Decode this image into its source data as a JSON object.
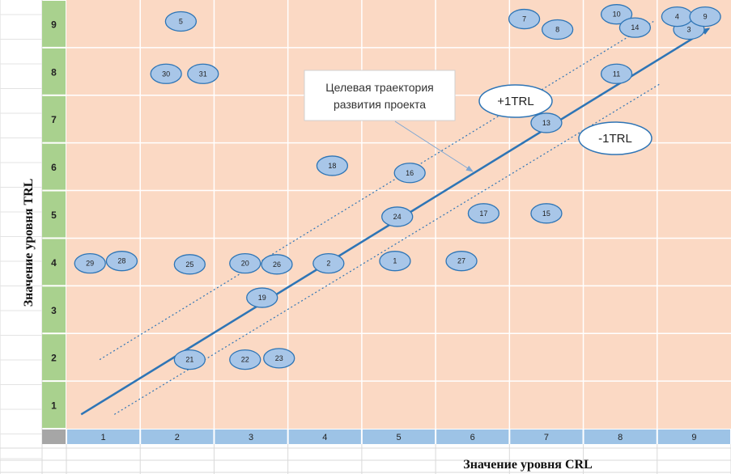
{
  "chart_data": {
    "type": "scatter",
    "xlabel": "Значение уровня CRL",
    "ylabel": "Значение уровня TRL",
    "xlim": [
      0.5,
      9.5
    ],
    "ylim": [
      0.5,
      9.5
    ],
    "x_ticks": [
      "1",
      "2",
      "3",
      "4",
      "5",
      "6",
      "7",
      "8",
      "9"
    ],
    "y_ticks": [
      "1",
      "2",
      "3",
      "4",
      "5",
      "6",
      "7",
      "8",
      "9"
    ],
    "grid": true,
    "colors": {
      "plot_background": "#fbd9c4",
      "grid": "#ffffff",
      "x_axis_band": "#9dc3e6",
      "y_axis_band": "#a9d18e",
      "marker_fill": "#a8c6e8",
      "marker_edge": "#2e75b6",
      "trend_line": "#2e75b6"
    },
    "points": [
      {
        "label": "1",
        "x": 4.95,
        "y": 4.02
      },
      {
        "label": "2",
        "x": 4.05,
        "y": 3.97
      },
      {
        "label": "3",
        "x": 8.93,
        "y": 8.88
      },
      {
        "label": "4",
        "x": 8.77,
        "y": 9.15
      },
      {
        "label": "5",
        "x": 2.05,
        "y": 9.05
      },
      {
        "label": "7",
        "x": 6.7,
        "y": 9.1
      },
      {
        "label": "8",
        "x": 7.15,
        "y": 8.88
      },
      {
        "label": "9",
        "x": 9.15,
        "y": 9.15
      },
      {
        "label": "10",
        "x": 7.95,
        "y": 9.2
      },
      {
        "label": "11",
        "x": 7.95,
        "y": 7.95
      },
      {
        "label": "13",
        "x": 7.0,
        "y": 6.92
      },
      {
        "label": "14",
        "x": 8.2,
        "y": 8.92
      },
      {
        "label": "15",
        "x": 7.0,
        "y": 5.02
      },
      {
        "label": "16",
        "x": 5.15,
        "y": 5.87
      },
      {
        "label": "17",
        "x": 6.15,
        "y": 5.02
      },
      {
        "label": "18",
        "x": 4.1,
        "y": 6.02
      },
      {
        "label": "19",
        "x": 3.15,
        "y": 3.25
      },
      {
        "label": "20",
        "x": 2.92,
        "y": 3.97
      },
      {
        "label": "21",
        "x": 2.17,
        "y": 1.95
      },
      {
        "label": "22",
        "x": 2.92,
        "y": 1.95
      },
      {
        "label": "23",
        "x": 3.38,
        "y": 1.98
      },
      {
        "label": "24",
        "x": 4.98,
        "y": 4.95
      },
      {
        "label": "25",
        "x": 2.17,
        "y": 3.95
      },
      {
        "label": "26",
        "x": 3.35,
        "y": 3.95
      },
      {
        "label": "27",
        "x": 5.85,
        "y": 4.02
      },
      {
        "label": "28",
        "x": 1.25,
        "y": 4.02
      },
      {
        "label": "29",
        "x": 0.82,
        "y": 3.97
      },
      {
        "label": "30",
        "x": 1.85,
        "y": 7.95
      },
      {
        "label": "31",
        "x": 2.35,
        "y": 7.95
      }
    ],
    "trend_line": {
      "from": [
        0.7,
        0.8
      ],
      "to": [
        9.2,
        8.9
      ]
    },
    "upper_band_line": {
      "from": [
        0.95,
        1.95
      ],
      "to": [
        8.45,
        9.05
      ]
    },
    "lower_band_line": {
      "from": [
        1.15,
        0.8
      ],
      "to": [
        8.55,
        7.75
      ]
    },
    "annotations": {
      "trajectory": "Целевая траектория\nразвития проекта",
      "plus_band": "+1TRL",
      "minus_band": "-1TRL"
    }
  }
}
